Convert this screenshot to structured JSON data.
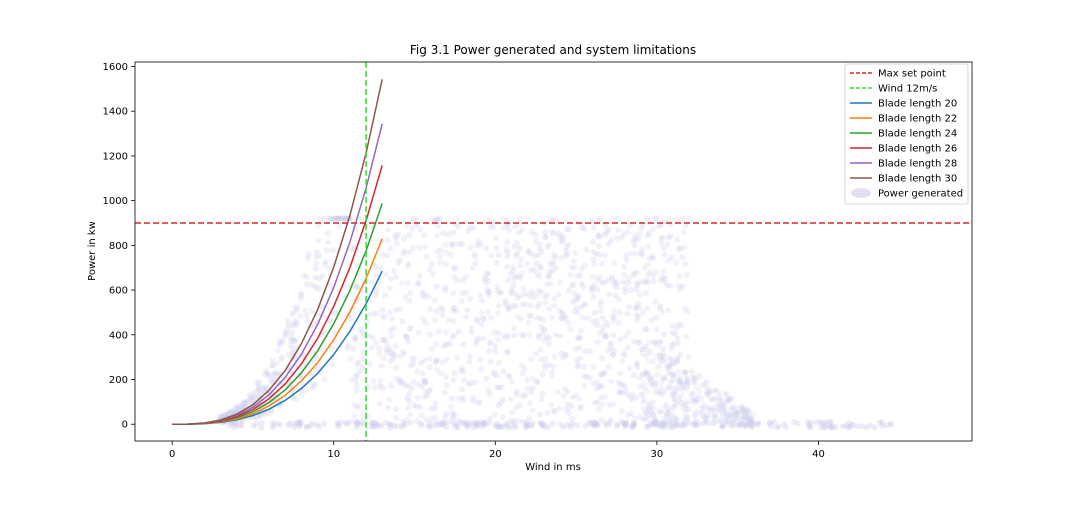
{
  "chart_data": {
    "type": "line",
    "title": "Fig 3.1 Power generated and system limitations",
    "xlabel": "Wind in ms",
    "ylabel": "Power in kw",
    "xlim": [
      -2.3,
      49.5
    ],
    "ylim": [
      -75,
      1620
    ],
    "xticks": [
      0,
      10,
      20,
      30,
      40
    ],
    "yticks": [
      0,
      200,
      400,
      600,
      800,
      1000,
      1200,
      1400,
      1600
    ],
    "grid": false,
    "legend_position": "top-right",
    "x": [
      0,
      1,
      2,
      3,
      4,
      5,
      6,
      7,
      8,
      9,
      10,
      11,
      12,
      13
    ],
    "series": [
      {
        "name": "Blade length 20",
        "color": "#1f77b4",
        "values": [
          0,
          0.3,
          2.5,
          8.4,
          20,
          39,
          67,
          107,
          160,
          227,
          312,
          415,
          539,
          685
        ]
      },
      {
        "name": "Blade length 22",
        "color": "#ff7f0e",
        "values": [
          0,
          0.4,
          3,
          10,
          24,
          47,
          82,
          130,
          194,
          275,
          377,
          502,
          652,
          829
        ]
      },
      {
        "name": "Blade length 24",
        "color": "#2ca02c",
        "values": [
          0,
          0.5,
          3.6,
          12,
          29,
          56,
          97,
          154,
          230,
          328,
          449,
          598,
          776,
          987
        ]
      },
      {
        "name": "Blade length 26",
        "color": "#d62728",
        "values": [
          0,
          0.5,
          4.2,
          14,
          34,
          66,
          114,
          181,
          270,
          384,
          527,
          701,
          911,
          1158
        ]
      },
      {
        "name": "Blade length 28",
        "color": "#9467bd",
        "values": [
          0,
          0.6,
          4.9,
          16.5,
          39,
          76,
          132,
          210,
          313,
          446,
          611,
          814,
          1056,
          1343
        ]
      },
      {
        "name": "Blade length 30",
        "color": "#8c564b",
        "values": [
          0,
          0.7,
          5.6,
          19,
          45,
          88,
          152,
          241,
          360,
          512,
          702,
          934,
          1213,
          1542
        ]
      }
    ],
    "reference_lines": [
      {
        "name": "Max set point",
        "orientation": "horizontal",
        "value": 900,
        "color": "#d62728",
        "style": "dashed"
      },
      {
        "name": "Wind 12m/s",
        "orientation": "vertical",
        "value": 12,
        "color": "#33dd33",
        "style": "dashed"
      }
    ],
    "scatter": {
      "name": "Power generated",
      "color": "#ccccee",
      "note_x_range": [
        0,
        45
      ],
      "note_y_range": [
        -20,
        930
      ]
    }
  }
}
